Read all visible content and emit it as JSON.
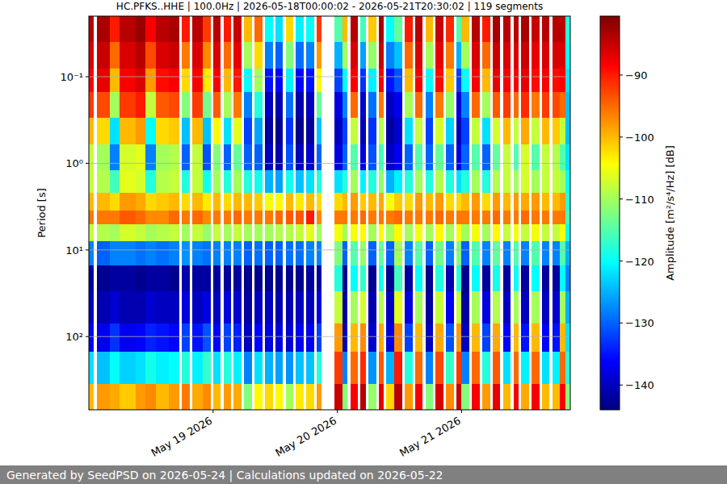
{
  "chart_data": {
    "type": "heatmap",
    "title": "HC.PFKS..HHE | 100.0Hz | 2026-05-18T00:00:02 - 2026-05-21T20:30:02 | 119 segments",
    "y_label": "Period [s]",
    "colorbar_label": "Amplitude [m²/s⁴/Hz] [dB]",
    "footer": "Generated by SeedPSD on 2026-05-24 | Calculations updated on 2026-05-22",
    "color": "jet",
    "log": "y",
    "grid": true,
    "xlim": [
      "2026-05-18T00:00",
      "2026-05-21T21:00"
    ],
    "xticks": [
      {
        "value": "2026-05-19T00:00",
        "label": "May 19 2026"
      },
      {
        "value": "2026-05-20T00:00",
        "label": "May 20 2026"
      },
      {
        "value": "2026-05-21T00:00",
        "label": "May 21 2026"
      }
    ],
    "ylim": [
      0.02,
      700
    ],
    "yticks": [
      {
        "value": 0.1,
        "label": "10⁻¹"
      },
      {
        "value": 1,
        "label": "10⁰"
      },
      {
        "value": 10,
        "label": "10¹"
      },
      {
        "value": 100,
        "label": "10²"
      }
    ],
    "colorbar_range": [
      -144,
      -80.5
    ],
    "colorbar_ticks": [
      {
        "value": -90,
        "label": "−90"
      },
      {
        "value": -100,
        "label": "−100"
      },
      {
        "value": -110,
        "label": "−110"
      },
      {
        "value": -120,
        "label": "−120"
      },
      {
        "value": -130,
        "label": "−130"
      },
      {
        "value": -140,
        "label": "−140"
      }
    ],
    "y_edges": [
      0.02,
      0.04,
      0.08,
      0.15,
      0.3,
      0.6,
      1.2,
      2.2,
      3.5,
      5,
      8,
      15,
      30,
      70,
      150,
      350,
      700
    ],
    "x_start": [
      "2026-05-18T00:00",
      "2026-05-18T01:30",
      "2026-05-18T04:00",
      "2026-05-18T06:00",
      "2026-05-18T09:00",
      "2026-05-18T11:00",
      "2026-05-18T13:00",
      "2026-05-18T15:30",
      "2026-05-18T18:00",
      "2026-05-18T20:00",
      "2026-05-18T22:00",
      "2026-05-19T00:00",
      "2026-05-19T02:00",
      "2026-05-19T04:00",
      "2026-05-19T06:00",
      "2026-05-19T08:00",
      "2026-05-19T10:00",
      "2026-05-19T12:00",
      "2026-05-19T14:00",
      "2026-05-19T16:00",
      "2026-05-19T18:00",
      "2026-05-19T20:00",
      "2026-05-19T23:30",
      "2026-05-20T01:00",
      "2026-05-20T02:30",
      "2026-05-20T04:30",
      "2026-05-20T06:00",
      "2026-05-20T08:00",
      "2026-05-20T09:30",
      "2026-05-20T11:00",
      "2026-05-20T13:00",
      "2026-05-20T15:00",
      "2026-05-20T17:00",
      "2026-05-20T19:00",
      "2026-05-20T21:00",
      "2026-05-20T23:00",
      "2026-05-21T00:00",
      "2026-05-21T02:00",
      "2026-05-21T04:00",
      "2026-05-21T06:00",
      "2026-05-21T08:00",
      "2026-05-21T10:00",
      "2026-05-21T11:30",
      "2026-05-21T13:30",
      "2026-05-21T15:30",
      "2026-05-21T17:30",
      "2026-05-21T19:00",
      "2026-05-21T20:00"
    ],
    "x_end": [
      "2026-05-18T01:00",
      "2026-05-18T04:00",
      "2026-05-18T06:00",
      "2026-05-18T09:00",
      "2026-05-18T11:00",
      "2026-05-18T13:00",
      "2026-05-18T15:30",
      "2026-05-18T17:30",
      "2026-05-18T19:30",
      "2026-05-18T22:00",
      "2026-05-18T23:30",
      "2026-05-19T01:30",
      "2026-05-19T03:30",
      "2026-05-19T05:30",
      "2026-05-19T07:30",
      "2026-05-19T09:30",
      "2026-05-19T11:30",
      "2026-05-19T13:30",
      "2026-05-19T15:30",
      "2026-05-19T17:30",
      "2026-05-19T19:30",
      "2026-05-19T21:00",
      "2026-05-20T01:00",
      "2026-05-20T02:00",
      "2026-05-20T04:00",
      "2026-05-20T05:30",
      "2026-05-20T07:30",
      "2026-05-20T09:00",
      "2026-05-20T11:00",
      "2026-05-20T12:30",
      "2026-05-20T14:30",
      "2026-05-20T16:30",
      "2026-05-20T18:30",
      "2026-05-20T20:30",
      "2026-05-20T22:30",
      "2026-05-21T00:00",
      "2026-05-21T01:30",
      "2026-05-21T03:30",
      "2026-05-21T05:30",
      "2026-05-21T07:30",
      "2026-05-21T09:30",
      "2026-05-21T11:00",
      "2026-05-21T13:00",
      "2026-05-21T15:00",
      "2026-05-21T17:00",
      "2026-05-21T19:00",
      "2026-05-21T20:00",
      "2026-05-21T21:00"
    ],
    "cells": [
      [
        -84,
        -86,
        -88,
        -92,
        -100,
        -108,
        -108,
        -100,
        -96,
        -108,
        -128,
        -142,
        -140,
        -136,
        -122,
        -100
      ],
      [
        -83,
        -85,
        -87,
        -93,
        -102,
        -110,
        -109,
        -100,
        -96,
        -109,
        -130,
        -143,
        -141,
        -137,
        -124,
        -98
      ],
      [
        -90,
        -95,
        -100,
        -110,
        -122,
        -128,
        -116,
        -102,
        -96,
        -110,
        -128,
        -142,
        -139,
        -133,
        -120,
        -99
      ],
      [
        -84,
        -86,
        -88,
        -92,
        -100,
        -107,
        -106,
        -98,
        -94,
        -107,
        -128,
        -142,
        -141,
        -137,
        -123,
        -101
      ],
      [
        -82,
        -84,
        -86,
        -90,
        -98,
        -106,
        -107,
        -99,
        -95,
        -108,
        -129,
        -143,
        -141,
        -136,
        -122,
        -98
      ],
      [
        -88,
        -93,
        -98,
        -108,
        -120,
        -128,
        -118,
        -102,
        -97,
        -110,
        -128,
        -142,
        -139,
        -134,
        -119,
        -97
      ],
      [
        -84,
        -86,
        -89,
        -94,
        -102,
        -110,
        -109,
        -101,
        -97,
        -109,
        -129,
        -142,
        -140,
        -135,
        -121,
        -100
      ],
      [
        -83,
        -85,
        -88,
        -93,
        -101,
        -109,
        -108,
        -100,
        -95,
        -108,
        -128,
        -143,
        -140,
        -136,
        -120,
        -98
      ],
      [
        -90,
        -96,
        -102,
        -112,
        -124,
        -130,
        -118,
        -102,
        -96,
        -110,
        -127,
        -141,
        -138,
        -132,
        -118,
        -96
      ],
      [
        -84,
        -86,
        -88,
        -92,
        -100,
        -108,
        -108,
        -100,
        -95,
        -108,
        -128,
        -142,
        -140,
        -135,
        -121,
        -99
      ],
      [
        -92,
        -97,
        -103,
        -113,
        -124,
        -131,
        -119,
        -103,
        -97,
        -111,
        -129,
        -142,
        -138,
        -131,
        -117,
        -97
      ],
      [
        -84,
        -86,
        -88,
        -94,
        -104,
        -112,
        -110,
        -100,
        -96,
        -108,
        -128,
        -142,
        -140,
        -136,
        -122,
        -100
      ],
      [
        -90,
        -95,
        -100,
        -110,
        -122,
        -130,
        -118,
        -102,
        -96,
        -110,
        -128,
        -142,
        -138,
        -132,
        -118,
        -98
      ],
      [
        -85,
        -87,
        -90,
        -96,
        -106,
        -114,
        -110,
        -100,
        -95,
        -108,
        -128,
        -142,
        -139,
        -134,
        -121,
        -99
      ],
      [
        -100,
        -110,
        -120,
        -128,
        -132,
        -130,
        -118,
        -100,
        -96,
        -110,
        -130,
        -143,
        -142,
        -140,
        -128,
        -112
      ],
      [
        -95,
        -102,
        -110,
        -118,
        -126,
        -130,
        -119,
        -101,
        -96,
        -110,
        -129,
        -143,
        -140,
        -136,
        -122,
        -104
      ],
      [
        -120,
        -128,
        -135,
        -140,
        -142,
        -140,
        -125,
        -105,
        -96,
        -110,
        -130,
        -143,
        -140,
        -138,
        -125,
        -102
      ],
      [
        -122,
        -130,
        -136,
        -141,
        -143,
        -141,
        -126,
        -104,
        -95,
        -109,
        -130,
        -143,
        -141,
        -138,
        -126,
        -104
      ],
      [
        -102,
        -112,
        -121,
        -129,
        -133,
        -131,
        -119,
        -100,
        -94,
        -109,
        -129,
        -143,
        -141,
        -139,
        -127,
        -110
      ],
      [
        -121,
        -129,
        -136,
        -141,
        -143,
        -140,
        -124,
        -103,
        -94,
        -108,
        -129,
        -143,
        -140,
        -137,
        -124,
        -103
      ],
      [
        -120,
        -128,
        -135,
        -140,
        -142,
        -139,
        -122,
        -100,
        -90,
        -106,
        -128,
        -142,
        -140,
        -137,
        -124,
        -102
      ],
      [
        -92,
        -98,
        -104,
        -114,
        -124,
        -130,
        -118,
        -102,
        -97,
        -110,
        -128,
        -142,
        -138,
        -132,
        -118,
        -98
      ],
      [
        -115,
        -125,
        -132,
        -138,
        -140,
        -138,
        -122,
        -102,
        -96,
        -105,
        -112,
        -118,
        -108,
        -98,
        -92,
        -85
      ],
      [
        -100,
        -110,
        -120,
        -128,
        -132,
        -130,
        -118,
        -100,
        -96,
        -110,
        -130,
        -143,
        -142,
        -140,
        -128,
        -112
      ],
      [
        -84,
        -86,
        -88,
        -95,
        -108,
        -115,
        -110,
        -98,
        -96,
        -105,
        -115,
        -120,
        -110,
        -100,
        -95,
        -88
      ],
      [
        -116,
        -126,
        -133,
        -139,
        -141,
        -138,
        -121,
        -101,
        -95,
        -104,
        -111,
        -117,
        -107,
        -97,
        -91,
        -84
      ],
      [
        -101,
        -111,
        -121,
        -129,
        -133,
        -131,
        -118,
        -100,
        -96,
        -110,
        -130,
        -143,
        -141,
        -139,
        -127,
        -111
      ],
      [
        -83,
        -85,
        -88,
        -96,
        -109,
        -116,
        -111,
        -99,
        -96,
        -104,
        -114,
        -119,
        -109,
        -99,
        -94,
        -87
      ],
      [
        -120,
        -128,
        -135,
        -140,
        -142,
        -140,
        -125,
        -105,
        -96,
        -110,
        -130,
        -143,
        -140,
        -138,
        -125,
        -102
      ],
      [
        -114,
        -124,
        -131,
        -137,
        -139,
        -137,
        -121,
        -101,
        -95,
        -104,
        -110,
        -116,
        -106,
        -97,
        -90,
        -84
      ],
      [
        -90,
        -95,
        -100,
        -110,
        -122,
        -130,
        -118,
        -102,
        -96,
        -110,
        -128,
        -142,
        -138,
        -132,
        -118,
        -98
      ],
      [
        -84,
        -86,
        -88,
        -95,
        -108,
        -115,
        -110,
        -98,
        -96,
        -105,
        -115,
        -120,
        -110,
        -100,
        -95,
        -88
      ],
      [
        -100,
        -110,
        -120,
        -128,
        -132,
        -130,
        -118,
        -100,
        -96,
        -110,
        -130,
        -143,
        -142,
        -140,
        -128,
        -112
      ],
      [
        -85,
        -87,
        -89,
        -96,
        -107,
        -114,
        -109,
        -98,
        -95,
        -104,
        -113,
        -118,
        -108,
        -99,
        -93,
        -86
      ],
      [
        -91,
        -96,
        -101,
        -111,
        -123,
        -130,
        -118,
        -102,
        -96,
        -110,
        -128,
        -141,
        -137,
        -131,
        -117,
        -97
      ],
      [
        -115,
        -125,
        -132,
        -138,
        -140,
        -138,
        -122,
        -102,
        -96,
        -105,
        -112,
        -118,
        -108,
        -98,
        -92,
        -85
      ],
      [
        -100,
        -110,
        -120,
        -128,
        -132,
        -130,
        -118,
        -100,
        -96,
        -110,
        -130,
        -143,
        -142,
        -140,
        -128,
        -112
      ],
      [
        -84,
        -86,
        -88,
        -95,
        -108,
        -115,
        -110,
        -98,
        -96,
        -105,
        -115,
        -120,
        -110,
        -100,
        -95,
        -88
      ],
      [
        -90,
        -95,
        -100,
        -110,
        -122,
        -130,
        -118,
        -102,
        -96,
        -110,
        -128,
        -142,
        -138,
        -132,
        -118,
        -98
      ],
      [
        -83,
        -85,
        -87,
        -94,
        -107,
        -114,
        -109,
        -98,
        -95,
        -104,
        -114,
        -119,
        -109,
        -99,
        -94,
        -87
      ],
      [
        -84,
        -86,
        -88,
        -92,
        -100,
        -108,
        -108,
        -100,
        -96,
        -108,
        -128,
        -142,
        -140,
        -136,
        -122,
        -100
      ],
      [
        -84,
        -86,
        -88,
        -95,
        -108,
        -115,
        -110,
        -98,
        -96,
        -105,
        -115,
        -120,
        -110,
        -100,
        -95,
        -88
      ],
      [
        -83,
        -85,
        -87,
        -91,
        -99,
        -107,
        -107,
        -99,
        -95,
        -108,
        -128,
        -142,
        -140,
        -135,
        -121,
        -99
      ],
      [
        -85,
        -87,
        -89,
        -96,
        -108,
        -115,
        -110,
        -98,
        -96,
        -105,
        -115,
        -120,
        -110,
        -100,
        -95,
        -88
      ],
      [
        -84,
        -86,
        -88,
        -92,
        -100,
        -108,
        -108,
        -100,
        -96,
        -108,
        -128,
        -142,
        -140,
        -136,
        -122,
        -100
      ],
      [
        -84,
        -86,
        -89,
        -93,
        -101,
        -109,
        -108,
        -100,
        -96,
        -108,
        -128,
        -142,
        -139,
        -135,
        -121,
        -100
      ],
      [
        -84,
        -86,
        -88,
        -95,
        -108,
        -115,
        -110,
        -98,
        -96,
        -105,
        -115,
        -120,
        -110,
        -100,
        -95,
        -88
      ],
      [
        -118,
        -120,
        -122,
        -124,
        -124,
        -122,
        -120,
        -118,
        -116,
        -120,
        -125,
        -128,
        -125,
        -122,
        -118,
        -112
      ]
    ]
  }
}
